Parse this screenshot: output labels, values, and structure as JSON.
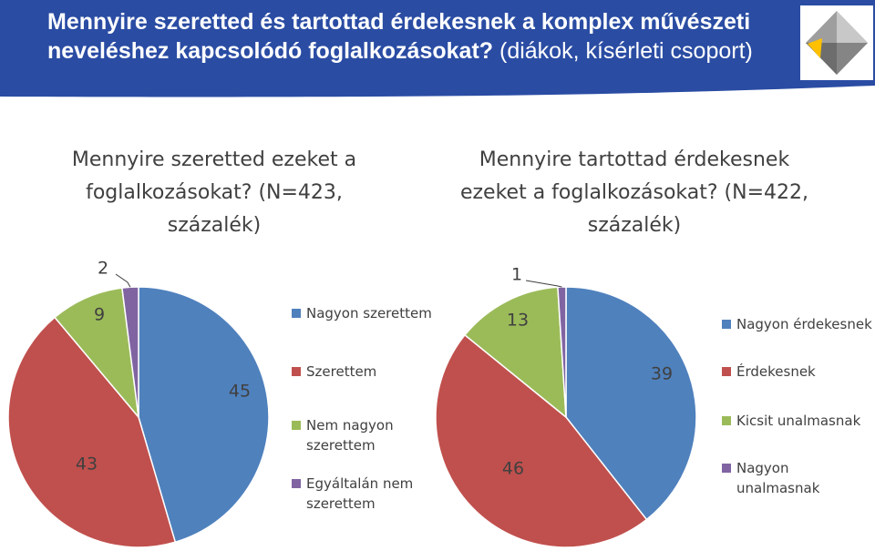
{
  "header": {
    "title_main": "Mennyire szeretted és tartottad érdekesnek a komplex művészeti neveléshez kapcsolódó foglalkozásokat?",
    "title_sub": "(diákok, kísérleti csoport)",
    "band_color": "#2a4ca3",
    "logo": "gray-diamond-logo"
  },
  "chart_data": [
    {
      "type": "pie",
      "title": "Mennyire szeretted ezeket a foglalkozásokat? (N=423, százalék)",
      "categories": [
        "Nagyon szerettem",
        "Szerettem",
        "Nem nagyon szerettem",
        "Egyáltalán nem szerettem"
      ],
      "values": [
        45,
        43,
        9,
        2
      ],
      "colors": [
        "#4f81bd",
        "#c0504d",
        "#9bbb59",
        "#8064a2"
      ],
      "labels": [
        "45",
        "43",
        "9",
        "2"
      ],
      "legend_position": "right"
    },
    {
      "type": "pie",
      "title": "Mennyire tartottad érdekesnek ezeket a foglalkozásokat? (N=422, százalék)",
      "categories": [
        "Nagyon érdekesnek",
        "Érdekesnek",
        "Kicsit unalmasnak",
        "Nagyon unalmasnak"
      ],
      "values": [
        39,
        46,
        13,
        1
      ],
      "colors": [
        "#4f81bd",
        "#c0504d",
        "#9bbb59",
        "#8064a2"
      ],
      "labels": [
        "39",
        "46",
        "13",
        "1"
      ],
      "legend_position": "right"
    }
  ]
}
